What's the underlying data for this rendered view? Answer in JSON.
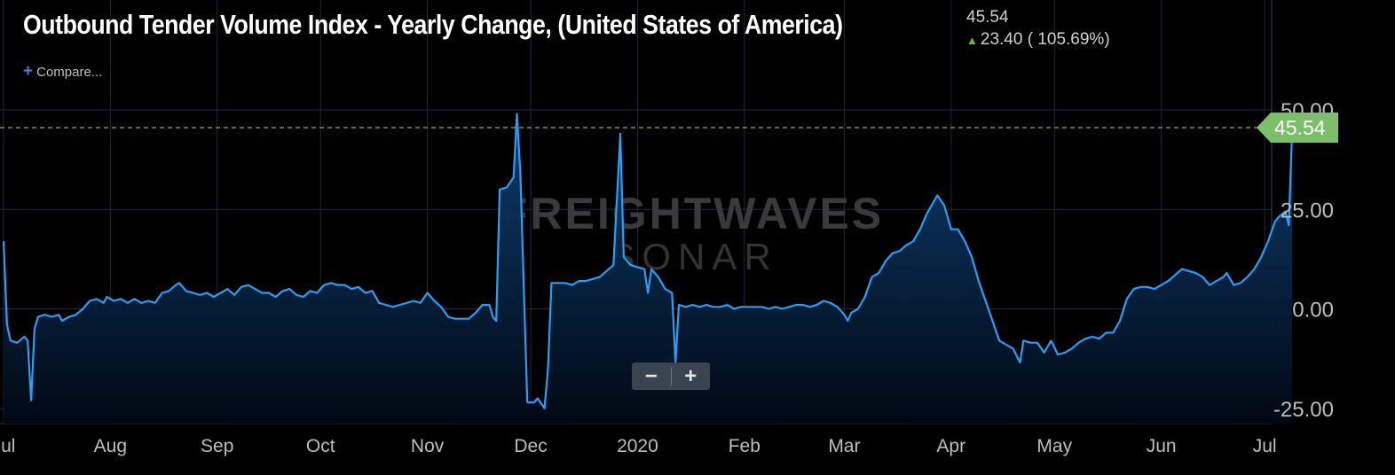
{
  "header": {
    "title": "Outbound Tender Volume Index - Yearly Change, (United States of America)",
    "last_value": "45.54",
    "change_text": "23.40 ( 105.69%)",
    "compare_label": "Compare..."
  },
  "watermark": {
    "line1": "FREIGHTWAVES",
    "line2": "SONAR"
  },
  "zoom": {
    "minus": "−",
    "plus": "+"
  },
  "colors": {
    "background": "#000000",
    "grid": "#1f2a38",
    "line": "#2a9ef5",
    "area_top": "#0c3f70",
    "last_value_marker": "#7bbf6a",
    "reference_line": "#8fae5e",
    "up_arrow": "#5fbf4a"
  },
  "chart_data": {
    "type": "area",
    "title": "Outbound Tender Volume Index - Yearly Change, (United States of America)",
    "ylim": [
      -27,
      50
    ],
    "y_ticks": [
      50,
      25,
      0,
      -25
    ],
    "y_tick_labels": [
      "50.00",
      "25.00",
      "0.00",
      "-25.00"
    ],
    "x_tick_labels": [
      {
        "label": "Jul",
        "date": "2019-07-01"
      },
      {
        "label": "Aug",
        "date": "2019-08-01"
      },
      {
        "label": "Sep",
        "date": "2019-09-01"
      },
      {
        "label": "Oct",
        "date": "2019-10-01"
      },
      {
        "label": "Nov",
        "date": "2019-11-01"
      },
      {
        "label": "Dec",
        "date": "2019-12-01"
      },
      {
        "label": "2020",
        "date": "2020-01-01"
      },
      {
        "label": "Feb",
        "date": "2020-02-01"
      },
      {
        "label": "Mar",
        "date": "2020-03-01"
      },
      {
        "label": "Apr",
        "date": "2020-04-01"
      },
      {
        "label": "May",
        "date": "2020-05-01"
      },
      {
        "label": "Jun",
        "date": "2020-06-01"
      },
      {
        "label": "Jul",
        "date": "2020-07-01"
      }
    ],
    "x_range": [
      "2019-07-01",
      "2020-07-02"
    ],
    "last_value": 45.54,
    "last_value_label": "45.54",
    "reference_line": 45.54,
    "series": [
      {
        "name": "",
        "points": [
          [
            "2019-07-01",
            17
          ],
          [
            "2019-07-02",
            -4
          ],
          [
            "2019-07-03",
            -8
          ],
          [
            "2019-07-05",
            -8.5
          ],
          [
            "2019-07-07",
            -7
          ],
          [
            "2019-07-08",
            -8
          ],
          [
            "2019-07-09",
            -23
          ],
          [
            "2019-07-10",
            -5
          ],
          [
            "2019-07-11",
            -2
          ],
          [
            "2019-07-13",
            -1.5
          ],
          [
            "2019-07-15",
            -2
          ],
          [
            "2019-07-17",
            -1.5
          ],
          [
            "2019-07-18",
            -3
          ],
          [
            "2019-07-20",
            -2
          ],
          [
            "2019-07-22",
            -1.5
          ],
          [
            "2019-07-24",
            0
          ],
          [
            "2019-07-26",
            2
          ],
          [
            "2019-07-28",
            2.5
          ],
          [
            "2019-07-30",
            1.5
          ],
          [
            "2019-07-31",
            3
          ],
          [
            "2019-08-02",
            2
          ],
          [
            "2019-08-04",
            2.5
          ],
          [
            "2019-08-06",
            1.5
          ],
          [
            "2019-08-08",
            2.5
          ],
          [
            "2019-08-10",
            1.5
          ],
          [
            "2019-08-12",
            2
          ],
          [
            "2019-08-14",
            1.5
          ],
          [
            "2019-08-16",
            4
          ],
          [
            "2019-08-18",
            4.5
          ],
          [
            "2019-08-20",
            6
          ],
          [
            "2019-08-21",
            6.5
          ],
          [
            "2019-08-23",
            4.5
          ],
          [
            "2019-08-25",
            4
          ],
          [
            "2019-08-27",
            3.5
          ],
          [
            "2019-08-29",
            4
          ],
          [
            "2019-08-31",
            3
          ],
          [
            "2019-09-02",
            4
          ],
          [
            "2019-09-04",
            5
          ],
          [
            "2019-09-06",
            3.5
          ],
          [
            "2019-09-08",
            5.5
          ],
          [
            "2019-09-10",
            6
          ],
          [
            "2019-09-12",
            5
          ],
          [
            "2019-09-14",
            4
          ],
          [
            "2019-09-16",
            4
          ],
          [
            "2019-09-18",
            3
          ],
          [
            "2019-09-20",
            4.5
          ],
          [
            "2019-09-22",
            5
          ],
          [
            "2019-09-24",
            3.5
          ],
          [
            "2019-09-26",
            3
          ],
          [
            "2019-09-28",
            4.5
          ],
          [
            "2019-09-30",
            4
          ],
          [
            "2019-10-02",
            6
          ],
          [
            "2019-10-04",
            6.5
          ],
          [
            "2019-10-06",
            6
          ],
          [
            "2019-10-08",
            6
          ],
          [
            "2019-10-10",
            5
          ],
          [
            "2019-10-12",
            5.5
          ],
          [
            "2019-10-14",
            4
          ],
          [
            "2019-10-16",
            4.5
          ],
          [
            "2019-10-18",
            1.5
          ],
          [
            "2019-10-20",
            1
          ],
          [
            "2019-10-22",
            0.5
          ],
          [
            "2019-10-24",
            1
          ],
          [
            "2019-10-26",
            1.5
          ],
          [
            "2019-10-28",
            2
          ],
          [
            "2019-10-30",
            1.5
          ],
          [
            "2019-11-01",
            4
          ],
          [
            "2019-11-03",
            2
          ],
          [
            "2019-11-05",
            0.5
          ],
          [
            "2019-11-07",
            -2
          ],
          [
            "2019-11-09",
            -2.5
          ],
          [
            "2019-11-11",
            -2.5
          ],
          [
            "2019-11-13",
            -2.5
          ],
          [
            "2019-11-15",
            -1
          ],
          [
            "2019-11-17",
            1
          ],
          [
            "2019-11-19",
            1
          ],
          [
            "2019-11-20",
            -2
          ],
          [
            "2019-11-21",
            -3
          ],
          [
            "2019-11-22",
            30
          ],
          [
            "2019-11-24",
            30.5
          ],
          [
            "2019-11-26",
            33
          ],
          [
            "2019-11-27",
            49
          ],
          [
            "2019-11-28",
            34
          ],
          [
            "2019-11-29",
            5
          ],
          [
            "2019-11-30",
            -23.5
          ],
          [
            "2019-12-02",
            -23.5
          ],
          [
            "2019-12-03",
            -22.5
          ],
          [
            "2019-12-05",
            -25
          ],
          [
            "2019-12-06",
            -15
          ],
          [
            "2019-12-07",
            6.5
          ],
          [
            "2019-12-09",
            6.5
          ],
          [
            "2019-12-11",
            6.5
          ],
          [
            "2019-12-13",
            6
          ],
          [
            "2019-12-15",
            7
          ],
          [
            "2019-12-17",
            7
          ],
          [
            "2019-12-19",
            7.5
          ],
          [
            "2019-12-21",
            8
          ],
          [
            "2019-12-23",
            9.5
          ],
          [
            "2019-12-25",
            11
          ],
          [
            "2019-12-27",
            44
          ],
          [
            "2019-12-28",
            13
          ],
          [
            "2019-12-30",
            11
          ],
          [
            "2020-01-01",
            10.5
          ],
          [
            "2020-01-03",
            10
          ],
          [
            "2020-01-04",
            4
          ],
          [
            "2020-01-05",
            10
          ],
          [
            "2020-01-07",
            8
          ],
          [
            "2020-01-09",
            5
          ],
          [
            "2020-01-11",
            4
          ],
          [
            "2020-01-12",
            -13.5
          ],
          [
            "2020-01-13",
            1
          ],
          [
            "2020-01-15",
            0.5
          ],
          [
            "2020-01-17",
            1
          ],
          [
            "2020-01-19",
            0.5
          ],
          [
            "2020-01-21",
            1
          ],
          [
            "2020-01-23",
            0.5
          ],
          [
            "2020-01-25",
            0.5
          ],
          [
            "2020-01-27",
            1
          ],
          [
            "2020-01-29",
            0
          ],
          [
            "2020-01-31",
            0.5
          ],
          [
            "2020-02-02",
            0.5
          ],
          [
            "2020-02-04",
            0.5
          ],
          [
            "2020-02-06",
            0.5
          ],
          [
            "2020-02-08",
            0
          ],
          [
            "2020-02-10",
            0.5
          ],
          [
            "2020-02-12",
            0
          ],
          [
            "2020-02-14",
            0.5
          ],
          [
            "2020-02-16",
            1
          ],
          [
            "2020-02-18",
            1
          ],
          [
            "2020-02-20",
            0.5
          ],
          [
            "2020-02-22",
            1
          ],
          [
            "2020-02-24",
            2
          ],
          [
            "2020-02-26",
            1.5
          ],
          [
            "2020-02-28",
            0.5
          ],
          [
            "2020-03-01",
            -1.5
          ],
          [
            "2020-03-02",
            -3
          ],
          [
            "2020-03-03",
            -1
          ],
          [
            "2020-03-05",
            0
          ],
          [
            "2020-03-07",
            3
          ],
          [
            "2020-03-09",
            8
          ],
          [
            "2020-03-11",
            9
          ],
          [
            "2020-03-13",
            12
          ],
          [
            "2020-03-15",
            14
          ],
          [
            "2020-03-17",
            14.5
          ],
          [
            "2020-03-19",
            16
          ],
          [
            "2020-03-21",
            17
          ],
          [
            "2020-03-23",
            20
          ],
          [
            "2020-03-25",
            24
          ],
          [
            "2020-03-27",
            27
          ],
          [
            "2020-03-28",
            28.5
          ],
          [
            "2020-03-30",
            26
          ],
          [
            "2020-04-01",
            20
          ],
          [
            "2020-04-03",
            20
          ],
          [
            "2020-04-05",
            17
          ],
          [
            "2020-04-07",
            13
          ],
          [
            "2020-04-09",
            7
          ],
          [
            "2020-04-11",
            2
          ],
          [
            "2020-04-13",
            -3
          ],
          [
            "2020-04-15",
            -8
          ],
          [
            "2020-04-17",
            -9
          ],
          [
            "2020-04-19",
            -10
          ],
          [
            "2020-04-21",
            -13.5
          ],
          [
            "2020-04-22",
            -8
          ],
          [
            "2020-04-24",
            -8.5
          ],
          [
            "2020-04-26",
            -8.5
          ],
          [
            "2020-04-28",
            -11
          ],
          [
            "2020-04-30",
            -8
          ],
          [
            "2020-05-02",
            -11.5
          ],
          [
            "2020-05-04",
            -11
          ],
          [
            "2020-05-06",
            -10
          ],
          [
            "2020-05-08",
            -8.5
          ],
          [
            "2020-05-10",
            -7.5
          ],
          [
            "2020-05-12",
            -7
          ],
          [
            "2020-05-14",
            -7.5
          ],
          [
            "2020-05-16",
            -6
          ],
          [
            "2020-05-18",
            -6
          ],
          [
            "2020-05-20",
            -3
          ],
          [
            "2020-05-22",
            2.5
          ],
          [
            "2020-05-24",
            5
          ],
          [
            "2020-05-26",
            5.5
          ],
          [
            "2020-05-28",
            5.5
          ],
          [
            "2020-05-30",
            5
          ],
          [
            "2020-06-01",
            6
          ],
          [
            "2020-06-03",
            7
          ],
          [
            "2020-06-05",
            8.5
          ],
          [
            "2020-06-07",
            10
          ],
          [
            "2020-06-09",
            9.5
          ],
          [
            "2020-06-11",
            9
          ],
          [
            "2020-06-13",
            8
          ],
          [
            "2020-06-15",
            6
          ],
          [
            "2020-06-17",
            7
          ],
          [
            "2020-06-19",
            8
          ],
          [
            "2020-06-20",
            9
          ],
          [
            "2020-06-22",
            6
          ],
          [
            "2020-06-24",
            6.5
          ],
          [
            "2020-06-26",
            8
          ],
          [
            "2020-06-28",
            10
          ],
          [
            "2020-06-30",
            13
          ],
          [
            "2020-07-02",
            17
          ],
          [
            "2020-07-04",
            22
          ],
          [
            "2020-07-05",
            23
          ],
          [
            "2020-07-07",
            24.5
          ],
          [
            "2020-07-08",
            21
          ],
          [
            "2020-07-09",
            45.54
          ]
        ]
      }
    ]
  }
}
